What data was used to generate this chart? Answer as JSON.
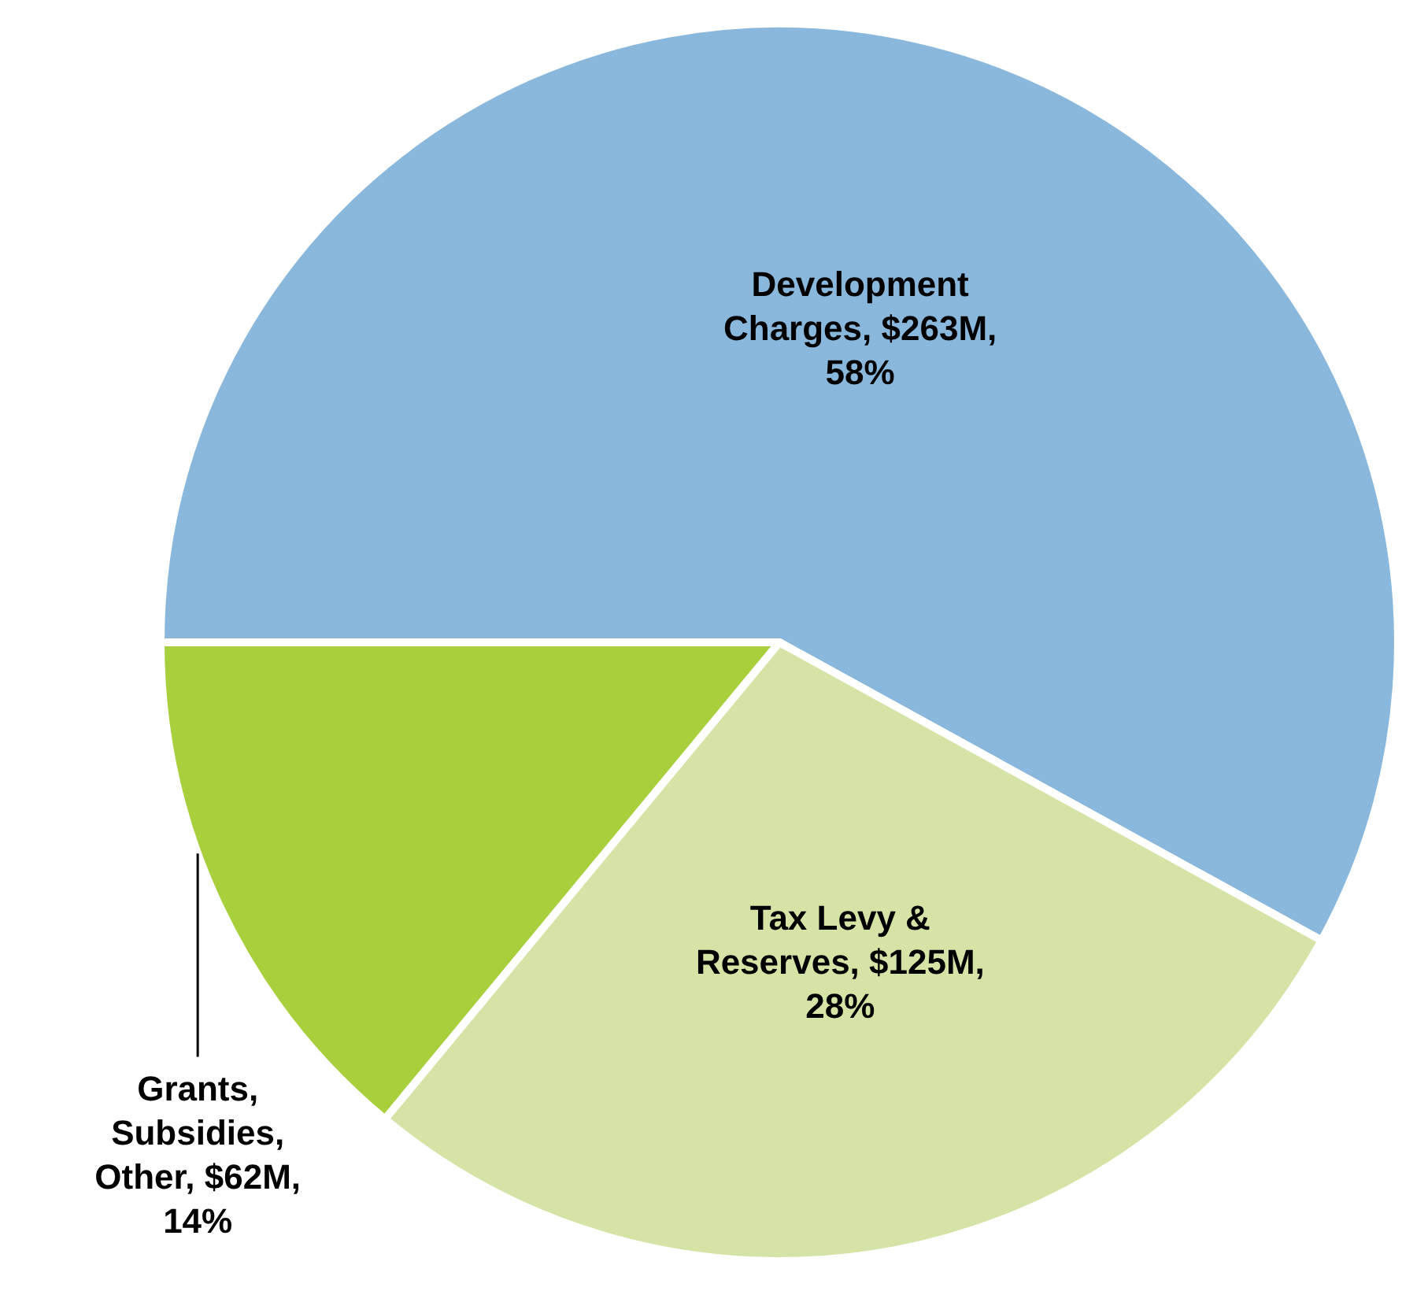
{
  "chart_data": {
    "type": "pie",
    "categories": [
      "Development Charges",
      "Tax Levy & Reserves",
      "Grants, Subsidies, Other"
    ],
    "values": [
      58,
      28,
      14
    ],
    "value_labels": [
      "$263M, 58%",
      "$125M, 28%",
      "$62M, 14%"
    ],
    "colors": [
      "#8ab8dc",
      "#d5e4a6",
      "#a8cf3c"
    ]
  }
}
